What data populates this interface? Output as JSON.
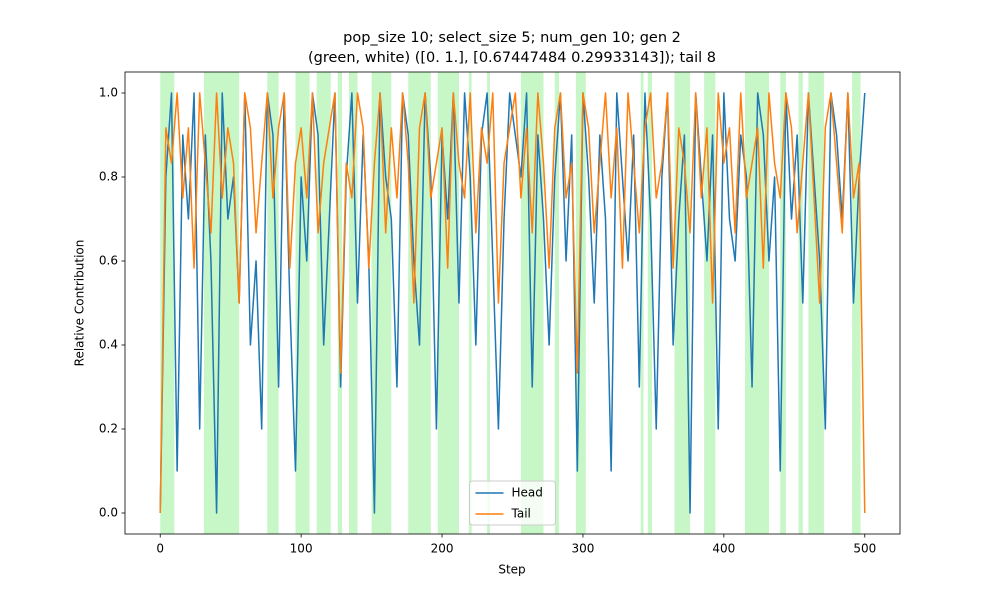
{
  "chart_data": {
    "type": "line",
    "title": [
      "pop_size 10; select_size 5; num_gen 10; gen 2",
      "(green, white) ([0. 1.], [0.67447484 0.29933143]); tail 8"
    ],
    "xlabel": "Step",
    "ylabel": "Relative Contribution",
    "xlim": [
      -25,
      525
    ],
    "xticks": [
      0,
      100,
      200,
      300,
      400,
      500
    ],
    "ylim": [
      -0.05,
      1.05
    ],
    "yticks": [
      {
        "value": 0,
        "label": "0.0"
      },
      0.2,
      0.4,
      0.6,
      0.8,
      {
        "value": 1,
        "label": "1.0"
      }
    ],
    "legend": "lower center",
    "span_color": "#90ee90",
    "spans": [
      [
        0,
        10
      ],
      [
        31,
        56
      ],
      [
        76,
        84
      ],
      [
        96,
        106
      ],
      [
        111,
        121
      ],
      [
        126,
        129
      ],
      [
        134,
        140
      ],
      [
        150,
        164
      ],
      [
        176,
        192
      ],
      [
        197,
        212
      ],
      [
        219,
        221
      ],
      [
        232,
        234
      ],
      [
        256,
        272
      ],
      [
        280,
        283
      ],
      [
        295,
        302
      ],
      [
        341,
        343
      ],
      [
        346,
        349
      ],
      [
        365,
        376
      ],
      [
        386,
        394
      ],
      [
        415,
        432
      ],
      [
        440,
        444
      ],
      [
        453,
        456
      ],
      [
        460,
        471
      ],
      [
        491,
        497
      ]
    ],
    "x": [
      0,
      4,
      8,
      12,
      16,
      20,
      24,
      28,
      32,
      36,
      40,
      44,
      48,
      52,
      56,
      60,
      64,
      68,
      72,
      76,
      80,
      84,
      88,
      92,
      96,
      100,
      104,
      108,
      112,
      116,
      120,
      124,
      128,
      132,
      136,
      140,
      144,
      148,
      152,
      156,
      160,
      164,
      168,
      172,
      176,
      180,
      184,
      188,
      192,
      196,
      200,
      204,
      208,
      212,
      216,
      220,
      224,
      228,
      232,
      236,
      240,
      244,
      248,
      252,
      256,
      260,
      264,
      268,
      272,
      276,
      280,
      284,
      288,
      292,
      296,
      300,
      304,
      308,
      312,
      316,
      320,
      324,
      328,
      332,
      336,
      340,
      344,
      348,
      352,
      356,
      360,
      364,
      368,
      372,
      376,
      380,
      384,
      388,
      392,
      396,
      400,
      404,
      408,
      412,
      416,
      420,
      424,
      428,
      432,
      436,
      440,
      444,
      448,
      452,
      456,
      460,
      464,
      468,
      472,
      476,
      480,
      484,
      488,
      492,
      496,
      500
    ],
    "series": [
      {
        "name": "Head",
        "color": "#1f77b4",
        "values": [
          0,
          0.8,
          1,
          0.1,
          0.9,
          0.7,
          1,
          0.2,
          0.9,
          0.6,
          0,
          1,
          0.7,
          0.8,
          0.5,
          1,
          0.4,
          0.6,
          0.2,
          1,
          0.9,
          0.3,
          1,
          0.5,
          0.1,
          0.8,
          0.6,
          1,
          0.9,
          0.4,
          0.7,
          1,
          0.3,
          0.8,
          1,
          0.5,
          0.9,
          0.6,
          0,
          1,
          0.8,
          0.7,
          0.3,
          1,
          0.9,
          0.6,
          0.4,
          1,
          0.8,
          0.2,
          0.9,
          0.7,
          1,
          0.5,
          1,
          0.8,
          0.4,
          0.9,
          1,
          0.6,
          0.2,
          0.7,
          1,
          0.9,
          0.8,
          1,
          0.3,
          0.9,
          0.7,
          0.4,
          0.8,
          1,
          0.6,
          0.9,
          0.1,
          1,
          0.8,
          0.5,
          0.9,
          0.7,
          0.1,
          1,
          0.8,
          0.6,
          0.9,
          0.3,
          1,
          0.7,
          0.2,
          0.8,
          1,
          0.4,
          0.7,
          0.9,
          0,
          1,
          0.8,
          0.6,
          0.9,
          0.2,
          1,
          0.7,
          0.6,
          0.9,
          0.8,
          0.3,
          1,
          0.9,
          0.6,
          0.8,
          0.1,
          1,
          0.7,
          0.9,
          0.5,
          1,
          0.8,
          0.6,
          0.2,
          1,
          0.9,
          0.7,
          1,
          0.5,
          0.8,
          1
        ]
      },
      {
        "name": "Tail",
        "color": "#ff7f0e",
        "values": [
          0,
          0.917,
          0.833,
          1,
          0.75,
          0.917,
          0.583,
          1,
          0.833,
          0.667,
          1,
          0.75,
          0.917,
          0.833,
          0.5,
          1,
          0.917,
          0.667,
          0.833,
          1,
          0.75,
          0.917,
          1,
          0.583,
          0.833,
          0.917,
          0.75,
          1,
          0.667,
          0.833,
          0.917,
          1,
          0.333,
          0.833,
          0.75,
          1,
          0.917,
          0.583,
          0.833,
          1,
          0.667,
          0.917,
          0.75,
          1,
          0.833,
          0.5,
          0.917,
          1,
          0.75,
          0.833,
          0.917,
          0.583,
          1,
          0.833,
          0.75,
          1,
          0.667,
          0.917,
          0.833,
          1,
          0.5,
          0.833,
          0.917,
          1,
          0.75,
          0.917,
          0.667,
          1,
          0.833,
          0.583,
          0.917,
          1,
          0.75,
          0.833,
          0.333,
          1,
          0.917,
          0.667,
          0.833,
          1,
          0.75,
          0.917,
          0.583,
          1,
          0.833,
          0.667,
          0.917,
          1,
          0.75,
          0.833,
          1,
          0.583,
          0.917,
          0.833,
          0.667,
          1,
          0.75,
          0.917,
          0.5,
          1,
          0.833,
          0.917,
          0.667,
          1,
          0.75,
          0.833,
          0.917,
          0.583,
          1,
          0.833,
          0.75,
          1,
          0.917,
          0.667,
          0.833,
          1,
          0.75,
          0.5,
          0.917,
          1,
          0.833,
          0.667,
          1,
          0.75,
          0.833,
          0
        ]
      }
    ]
  }
}
